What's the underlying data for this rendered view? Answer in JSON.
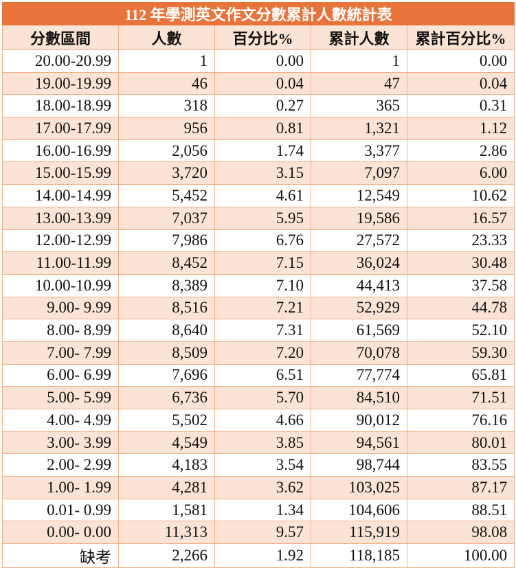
{
  "title": "112 年學測英文作文分數累計人數統計表",
  "colors": {
    "title_bg": "#E8743B",
    "stripe_bg": "#FBE4D5",
    "border": "#F2AE85"
  },
  "headers": [
    "分數區間",
    "人數",
    "百分比%",
    "累計人數",
    "累計百分比%"
  ],
  "rows": [
    [
      "20.00-20.99",
      "1",
      "0.00",
      "1",
      "0.00"
    ],
    [
      "19.00-19.99",
      "46",
      "0.04",
      "47",
      "0.04"
    ],
    [
      "18.00-18.99",
      "318",
      "0.27",
      "365",
      "0.31"
    ],
    [
      "17.00-17.99",
      "956",
      "0.81",
      "1,321",
      "1.12"
    ],
    [
      "16.00-16.99",
      "2,056",
      "1.74",
      "3,377",
      "2.86"
    ],
    [
      "15.00-15.99",
      "3,720",
      "3.15",
      "7,097",
      "6.00"
    ],
    [
      "14.00-14.99",
      "5,452",
      "4.61",
      "12,549",
      "10.62"
    ],
    [
      "13.00-13.99",
      "7,037",
      "5.95",
      "19,586",
      "16.57"
    ],
    [
      "12.00-12.99",
      "7,986",
      "6.76",
      "27,572",
      "23.33"
    ],
    [
      "11.00-11.99",
      "8,452",
      "7.15",
      "36,024",
      "30.48"
    ],
    [
      "10.00-10.99",
      "8,389",
      "7.10",
      "44,413",
      "37.58"
    ],
    [
      "9.00- 9.99",
      "8,516",
      "7.21",
      "52,929",
      "44.78"
    ],
    [
      "8.00- 8.99",
      "8,640",
      "7.31",
      "61,569",
      "52.10"
    ],
    [
      "7.00- 7.99",
      "8,509",
      "7.20",
      "70,078",
      "59.30"
    ],
    [
      "6.00- 6.99",
      "7,696",
      "6.51",
      "77,774",
      "65.81"
    ],
    [
      "5.00- 5.99",
      "6,736",
      "5.70",
      "84,510",
      "71.51"
    ],
    [
      "4.00- 4.99",
      "5,502",
      "4.66",
      "90,012",
      "76.16"
    ],
    [
      "3.00- 3.99",
      "4,549",
      "3.85",
      "94,561",
      "80.01"
    ],
    [
      "2.00- 2.99",
      "4,183",
      "3.54",
      "98,744",
      "83.55"
    ],
    [
      "1.00- 1.99",
      "4,281",
      "3.62",
      "103,025",
      "87.17"
    ],
    [
      "0.01- 0.99",
      "1,581",
      "1.34",
      "104,606",
      "88.51"
    ],
    [
      "0.00- 0.00",
      "11,313",
      "9.57",
      "115,919",
      "98.08"
    ],
    [
      "缺考",
      "2,266",
      "1.92",
      "118,185",
      "100.00"
    ]
  ]
}
